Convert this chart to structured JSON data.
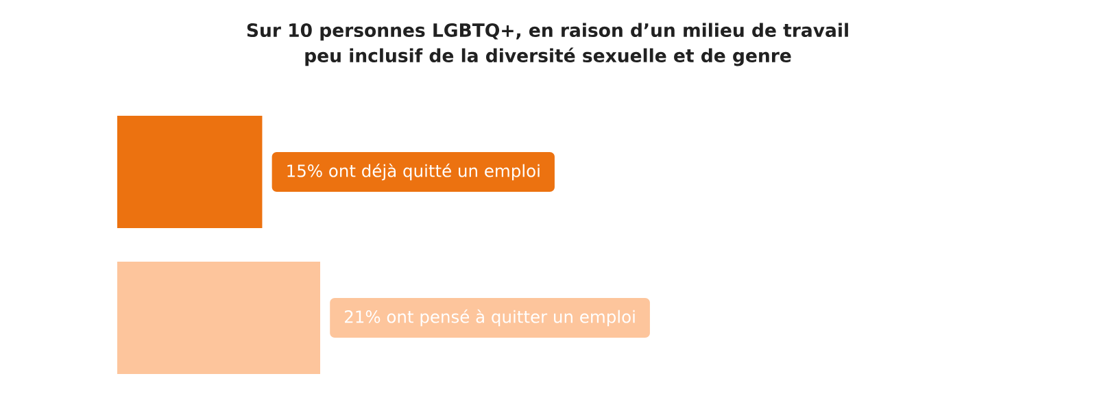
{
  "chart_data": {
    "type": "bar",
    "orientation": "horizontal",
    "title": "Sur 10 personnes LGBTQ+, en raison d’un milieu de travail peu inclusif de la diversité sexuelle et de genre",
    "categories": [
      null,
      null
    ],
    "values": [
      15,
      21
    ],
    "colors": [
      "#ec7210",
      "#fdc59c"
    ],
    "value_labels": [
      "15% ont déjà quitté un emploi",
      "21% ont pensé à quitter un emploi"
    ]
  }
}
